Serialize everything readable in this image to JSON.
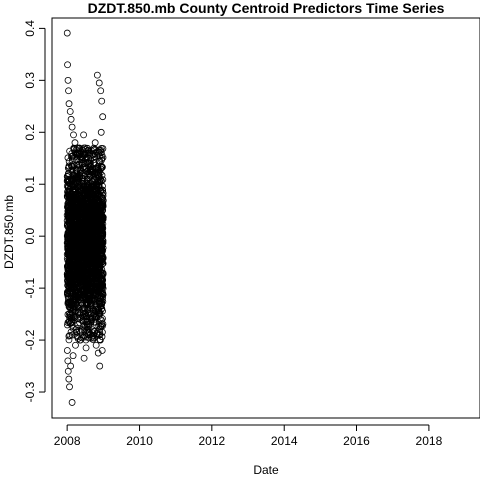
{
  "chart_data": {
    "type": "scatter",
    "title": "DZDT.850.mb County Centroid Predictors Time Series",
    "xlabel": "Date",
    "ylabel": "DZDT.850.mb",
    "x_scale": "date",
    "xlim": [
      "2007-08-01",
      "2019-06-01"
    ],
    "ylim": [
      -0.35,
      0.42
    ],
    "x_ticks": [
      {
        "value": "2008-01-01",
        "label": "2008"
      },
      {
        "value": "2010-01-01",
        "label": "2010"
      },
      {
        "value": "2012-01-01",
        "label": "2012"
      },
      {
        "value": "2014-01-01",
        "label": "2014"
      },
      {
        "value": "2016-01-01",
        "label": "2016"
      },
      {
        "value": "2018-01-01",
        "label": "2018"
      }
    ],
    "y_ticks": [
      {
        "value": -0.3,
        "label": "-0.3"
      },
      {
        "value": -0.2,
        "label": "-0.2"
      },
      {
        "value": -0.1,
        "label": "-0.1"
      },
      {
        "value": 0.0,
        "label": "0.0"
      },
      {
        "value": 0.1,
        "label": "0.1"
      },
      {
        "value": 0.2,
        "label": "0.2"
      },
      {
        "value": 0.3,
        "label": "0.3"
      },
      {
        "value": 0.4,
        "label": "0.4"
      }
    ],
    "grid": false,
    "legend": "none",
    "marker": "open-circle",
    "marker_color": "#000000",
    "series": [
      {
        "points": [
          {
            "x": "2008-01-02",
            "y": 0.391
          },
          {
            "x": "2008-01-05",
            "y": 0.33
          },
          {
            "x": "2008-01-10",
            "y": 0.3
          },
          {
            "x": "2008-01-15",
            "y": 0.28
          },
          {
            "x": "2008-01-20",
            "y": 0.255
          },
          {
            "x": "2008-02-01",
            "y": 0.24
          },
          {
            "x": "2008-02-10",
            "y": 0.225
          },
          {
            "x": "2008-02-20",
            "y": 0.21
          },
          {
            "x": "2008-03-05",
            "y": 0.195
          },
          {
            "x": "2008-03-20",
            "y": 0.18
          },
          {
            "x": "2008-04-10",
            "y": 0.17
          },
          {
            "x": "2008-05-01",
            "y": 0.16
          },
          {
            "x": "2008-06-15",
            "y": 0.195
          },
          {
            "x": "2008-07-01",
            "y": 0.17
          },
          {
            "x": "2008-08-01",
            "y": 0.15
          },
          {
            "x": "2008-09-01",
            "y": 0.165
          },
          {
            "x": "2008-10-10",
            "y": 0.18
          },
          {
            "x": "2008-11-01",
            "y": 0.31
          },
          {
            "x": "2008-11-20",
            "y": 0.295
          },
          {
            "x": "2008-12-05",
            "y": 0.28
          },
          {
            "x": "2008-12-15",
            "y": 0.26
          },
          {
            "x": "2008-12-25",
            "y": 0.23
          },
          {
            "x": "2008-12-10",
            "y": 0.2
          },
          {
            "x": "2008-01-03",
            "y": -0.22
          },
          {
            "x": "2008-01-08",
            "y": -0.24
          },
          {
            "x": "2008-01-12",
            "y": -0.26
          },
          {
            "x": "2008-01-18",
            "y": -0.275
          },
          {
            "x": "2008-01-25",
            "y": -0.29
          },
          {
            "x": "2008-02-20",
            "y": -0.32
          },
          {
            "x": "2008-02-05",
            "y": -0.25
          },
          {
            "x": "2008-03-01",
            "y": -0.23
          },
          {
            "x": "2008-03-25",
            "y": -0.21
          },
          {
            "x": "2008-05-10",
            "y": -0.2
          },
          {
            "x": "2008-06-20",
            "y": -0.235
          },
          {
            "x": "2008-07-10",
            "y": -0.215
          },
          {
            "x": "2008-08-20",
            "y": -0.19
          },
          {
            "x": "2008-09-15",
            "y": -0.18
          },
          {
            "x": "2008-10-20",
            "y": -0.21
          },
          {
            "x": "2008-11-10",
            "y": -0.225
          },
          {
            "x": "2008-11-25",
            "y": -0.25
          },
          {
            "x": "2008-12-20",
            "y": -0.22
          },
          {
            "x": "2008-12-01",
            "y": -0.2
          }
        ],
        "bulk": {
          "x_range": [
            "2008-01-01",
            "2008-12-31"
          ],
          "core_y_range": [
            -0.16,
            0.14
          ],
          "edge_y_range": [
            -0.2,
            0.17
          ]
        }
      }
    ]
  }
}
